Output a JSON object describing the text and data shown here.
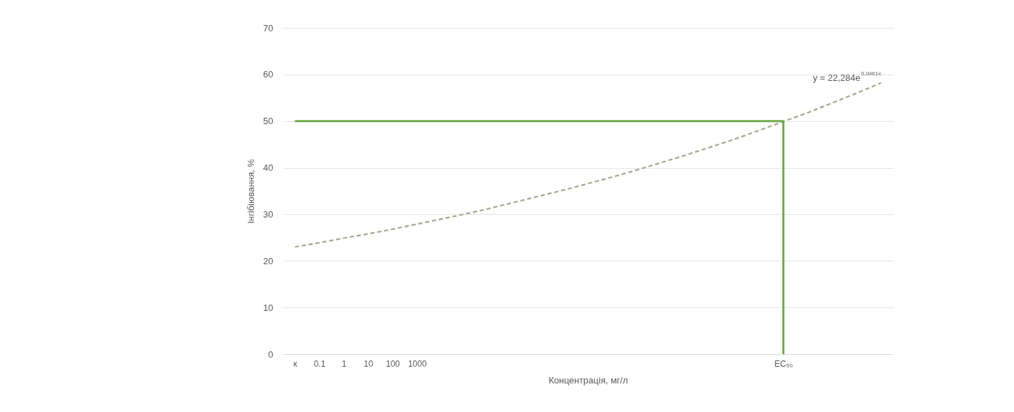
{
  "chart_data": {
    "type": "line",
    "xlabel": "Концентрація, мг/л",
    "ylabel": "Інгібіювання, %",
    "categories": [
      "к",
      "0.1",
      "1",
      "10",
      "100",
      "1000",
      null,
      null,
      null,
      null,
      null,
      null,
      null,
      null,
      null,
      null,
      null,
      null,
      null,
      null,
      "EC₅₀",
      null,
      null,
      null,
      null
    ],
    "series": [
      {
        "color": "#a6a48a",
        "line_style": "dashed",
        "values": [
          23.0,
          23.9,
          24.9,
          25.8,
          26.8,
          27.9,
          29.0,
          30.1,
          31.3,
          32.6,
          33.9,
          35.2,
          36.6,
          38.0,
          39.5,
          41.1,
          42.7,
          44.4,
          46.1,
          48.0,
          49.9,
          51.8,
          53.9,
          56.0,
          58.2
        ]
      },
      {
        "color": "#70ad47",
        "line_style": "solid",
        "x": [
          "к",
          "EC₅₀",
          "EC₅₀"
        ],
        "values": [
          50,
          50,
          0
        ]
      }
    ],
    "ylim": [
      0,
      70
    ],
    "yticks": [
      0,
      10,
      20,
      30,
      40,
      50,
      60,
      70
    ],
    "grid": "y",
    "marker": "none",
    "annotations": [
      "y = 22,284e$^{0,0461x}$"
    ]
  }
}
